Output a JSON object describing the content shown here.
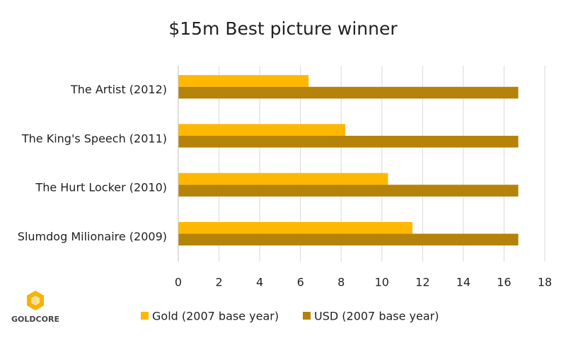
{
  "brand": "GOLDCORE",
  "chart_data": {
    "type": "hbar",
    "title": "$15m Best picture winner",
    "categories": [
      "The Artist (2012)",
      "The King's Speech (2011)",
      "The Hurt Locker (2010)",
      "Slumdog Milionaire (2009)"
    ],
    "series": [
      {
        "name": "Gold (2007 base year)",
        "color": "#ffb800",
        "values": [
          6.4,
          8.2,
          10.3,
          11.5
        ]
      },
      {
        "name": "USD (2007 base year)",
        "color": "#b5830a",
        "values": [
          16.7,
          16.7,
          16.7,
          16.7
        ]
      }
    ],
    "xlim": [
      0,
      18
    ],
    "xticks": [
      0,
      2,
      4,
      6,
      8,
      10,
      12,
      14,
      16,
      18
    ],
    "grid": true,
    "legend": "bottom"
  }
}
